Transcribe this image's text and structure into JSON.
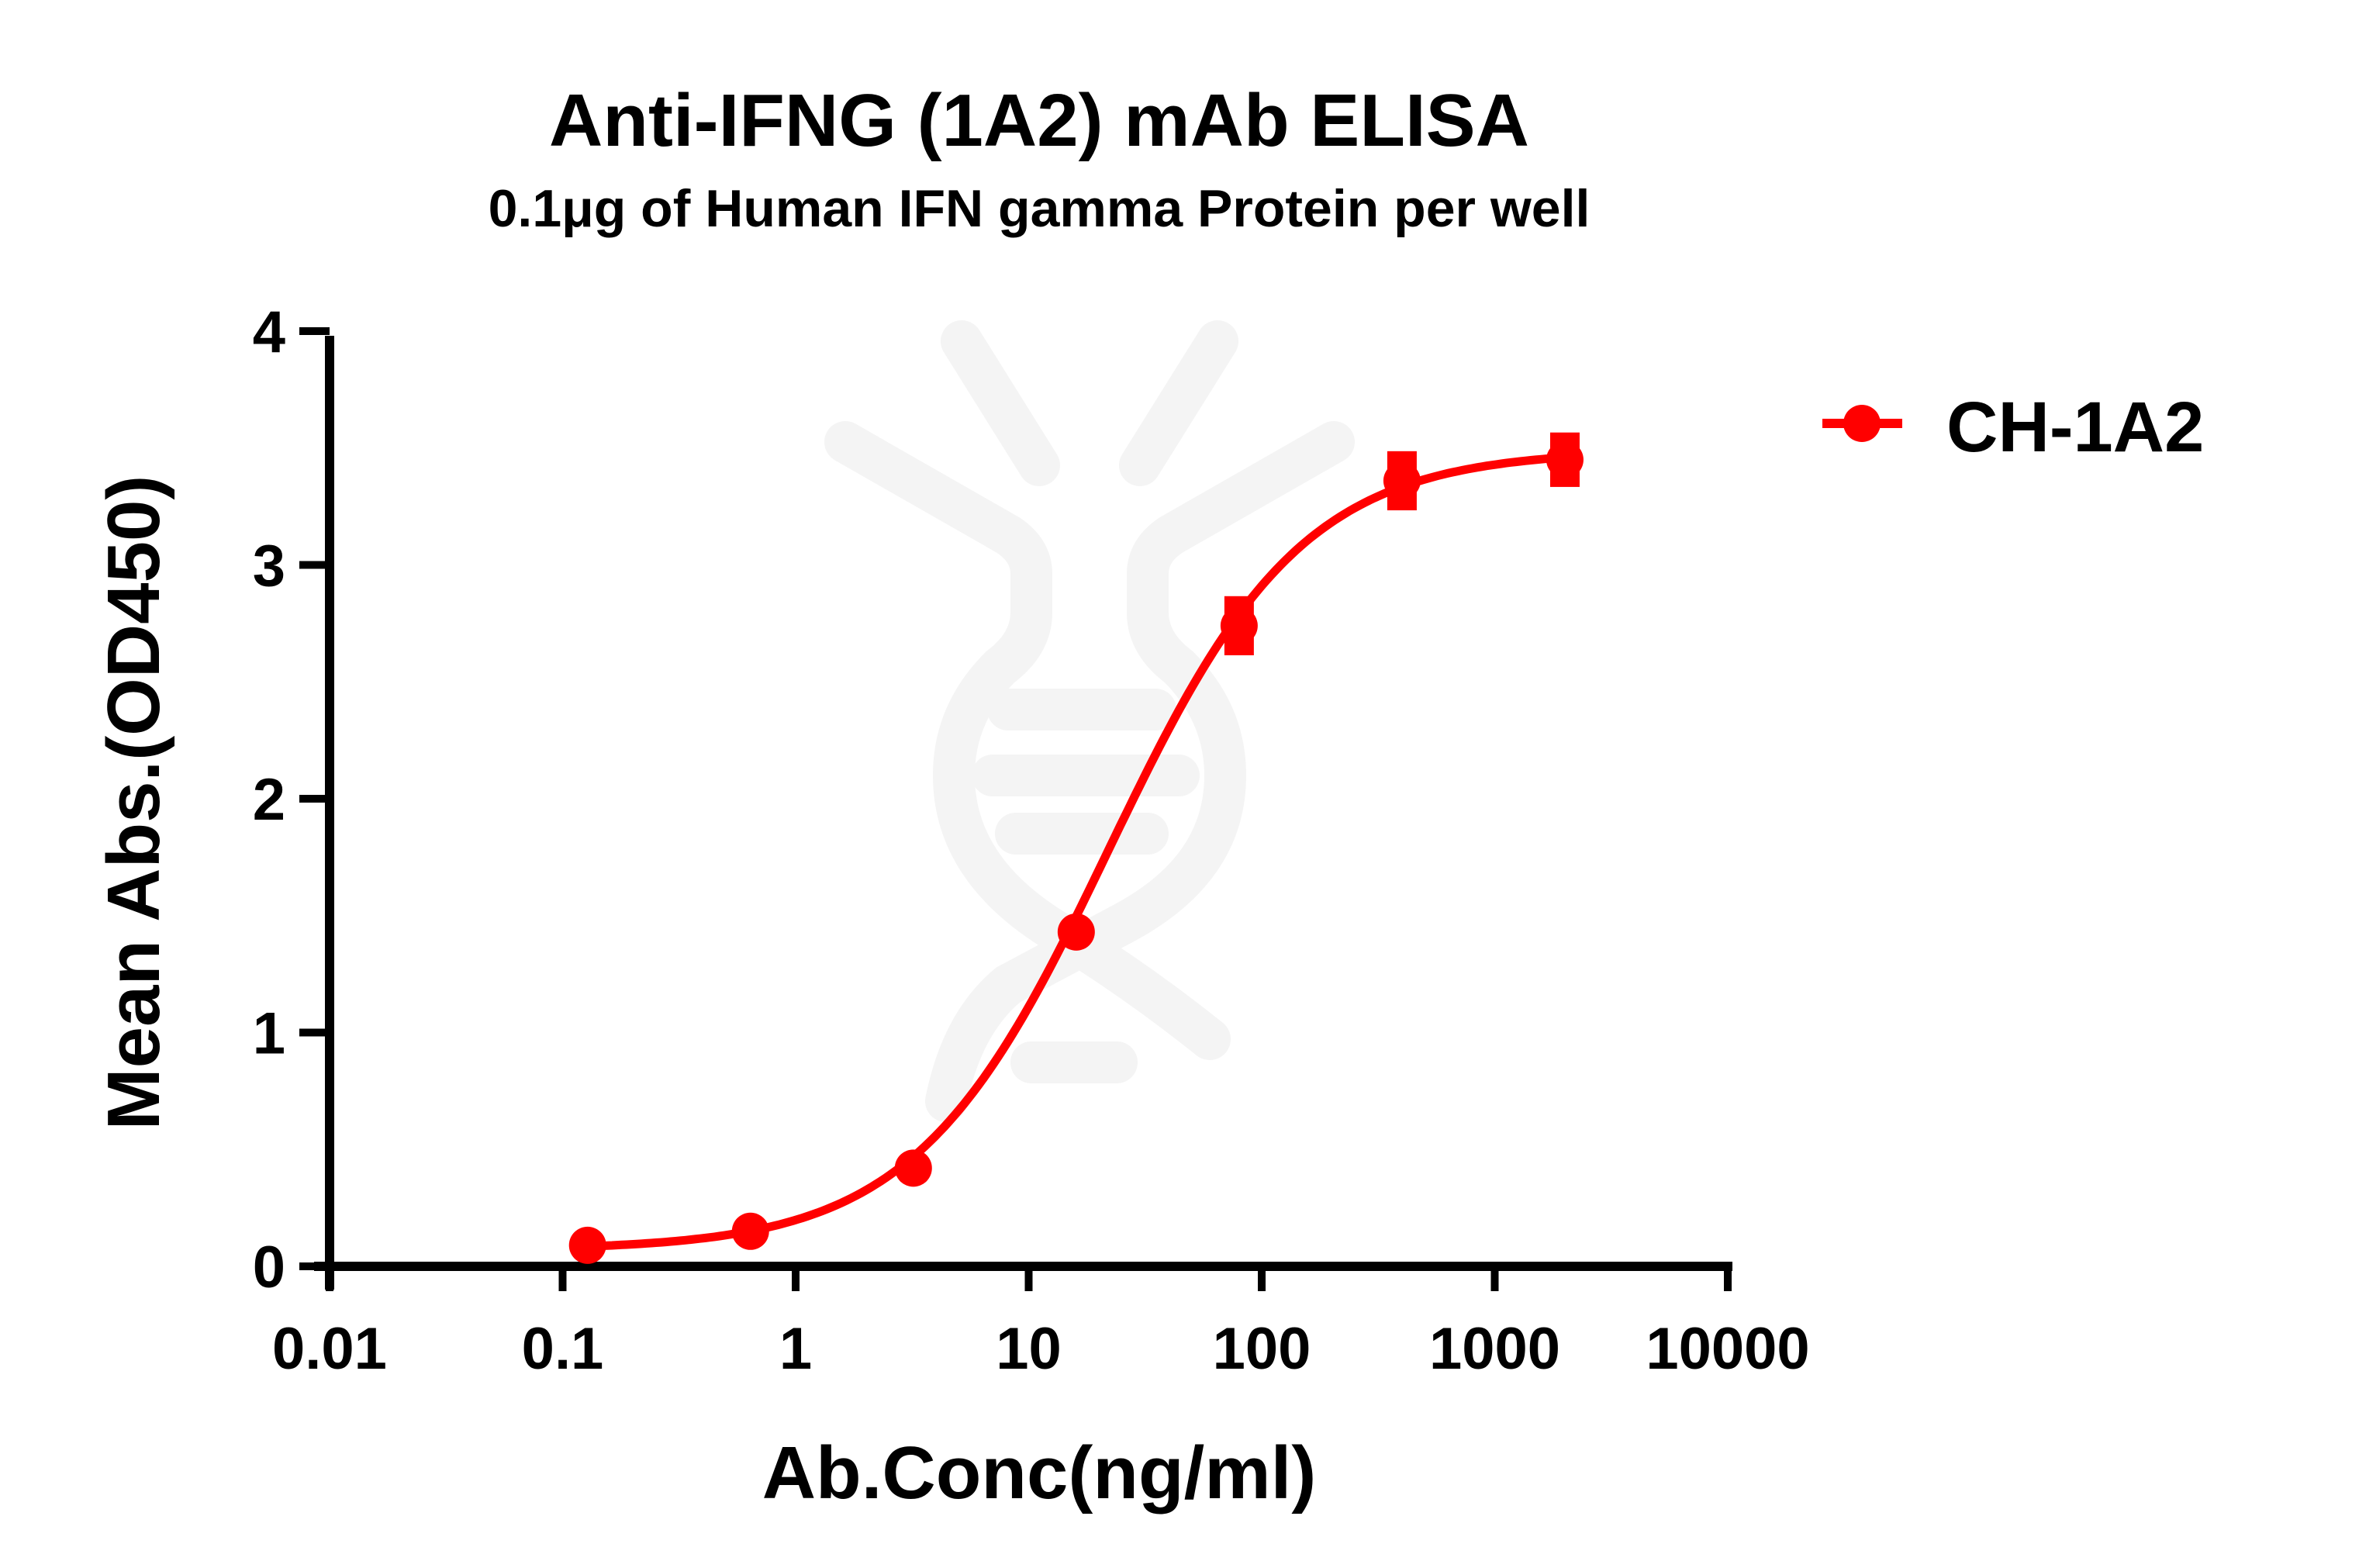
{
  "chart_data": {
    "type": "line",
    "title": "Anti-IFNG (1A2) mAb ELISA",
    "subtitle": "0.1μg of Human IFN gamma Protein per well",
    "xlabel": "Ab.Conc(ng/ml)",
    "ylabel": "Mean Abs.(OD450)",
    "x_scale": "log10",
    "xlim": [
      0.01,
      10000
    ],
    "ylim": [
      0,
      4
    ],
    "x_ticks": [
      "0.01",
      "0.1",
      "1",
      "10",
      "100",
      "1000",
      "10000"
    ],
    "y_ticks": [
      "0",
      "1",
      "2",
      "3",
      "4"
    ],
    "grid": false,
    "legend_position": "right-top",
    "series": [
      {
        "name": "CH-1A2",
        "color": "#ff0000",
        "marker": "circle",
        "fit": "4PL sigmoidal curve",
        "x": [
          0.128,
          0.64,
          3.2,
          16,
          80,
          400,
          2000
        ],
        "values": [
          0.09,
          0.15,
          0.42,
          1.43,
          2.74,
          3.36,
          3.45
        ],
        "error": [
          0.01,
          0.01,
          0.02,
          0.02,
          0.08,
          0.08,
          0.07
        ]
      }
    ]
  },
  "colors": {
    "series": "#ff0000",
    "axis": "#000000",
    "watermark": "#f3f3f3"
  }
}
